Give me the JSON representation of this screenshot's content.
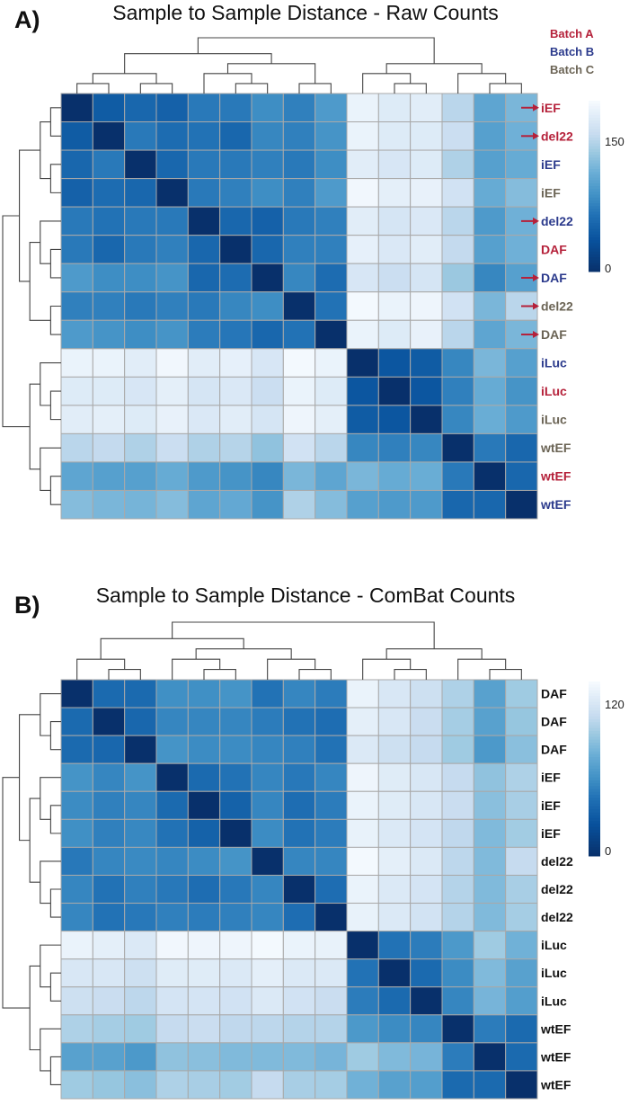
{
  "chart_data": [
    {
      "type": "heatmap",
      "panel_label": "A)",
      "title": "Sample to Sample Distance - Raw Counts",
      "colorbar": {
        "ticks": [
          0,
          150
        ],
        "range": [
          0,
          195
        ],
        "low_color": "#08306b",
        "high_color": "#f7fbff"
      },
      "batch_legend": [
        {
          "label": "Batch A",
          "color": "#b5213a"
        },
        {
          "label": "Batch B",
          "color": "#2b3a8c"
        },
        {
          "label": "Batch C",
          "color": "#6b6455"
        }
      ],
      "row_labels": [
        "iEF",
        "del22",
        "iEF",
        "iEF",
        "del22",
        "DAF",
        "DAF",
        "del22",
        "DAF",
        "iLuc",
        "iLuc",
        "iLuc",
        "wtEF",
        "wtEF",
        "wtEF"
      ],
      "row_batches": [
        "A",
        "A",
        "B",
        "C",
        "B",
        "A",
        "B",
        "C",
        "C",
        "B",
        "A",
        "C",
        "C",
        "A",
        "B"
      ],
      "arrow_rows": [
        0,
        1,
        4,
        6,
        7,
        8
      ],
      "row_clusters": [
        [
          [
            [
              0,
              1
            ],
            [
              2,
              3
            ]
          ],
          [
            [
              4,
              [
                5,
                6
              ]
            ],
            [
              7,
              8
            ]
          ]
        ],
        [
          [
            9,
            [
              10,
              11
            ]
          ],
          [
            12,
            [
              13,
              14
            ]
          ]
        ]
      ],
      "column_clusters": [
        [
          [
            [
              0,
              1
            ],
            [
              2,
              3
            ]
          ],
          [
            [
              4,
              [
                5,
                6
              ]
            ],
            [
              7,
              8
            ]
          ]
        ],
        [
          [
            9,
            [
              10,
              11
            ]
          ],
          [
            12,
            [
              13,
              14
            ]
          ]
        ]
      ],
      "values": [
        [
          0,
          45,
          55,
          50,
          70,
          70,
          85,
          75,
          95,
          185,
          175,
          178,
          150,
          105,
          120
        ],
        [
          45,
          0,
          70,
          60,
          65,
          55,
          80,
          75,
          90,
          185,
          175,
          175,
          160,
          100,
          115
        ],
        [
          55,
          70,
          0,
          55,
          70,
          70,
          75,
          70,
          85,
          178,
          170,
          175,
          145,
          100,
          110
        ],
        [
          50,
          60,
          55,
          0,
          70,
          75,
          85,
          75,
          95,
          190,
          180,
          183,
          165,
          110,
          125
        ],
        [
          70,
          65,
          70,
          70,
          0,
          55,
          50,
          70,
          75,
          178,
          168,
          172,
          150,
          95,
          115
        ],
        [
          70,
          55,
          70,
          75,
          55,
          0,
          55,
          75,
          75,
          182,
          172,
          178,
          155,
          100,
          115
        ],
        [
          95,
          85,
          85,
          90,
          55,
          60,
          0,
          80,
          60,
          170,
          160,
          168,
          135,
          80,
          100
        ],
        [
          75,
          75,
          70,
          75,
          70,
          80,
          85,
          0,
          65,
          192,
          185,
          188,
          165,
          120,
          150
        ],
        [
          95,
          90,
          85,
          90,
          72,
          68,
          55,
          65,
          0,
          185,
          175,
          183,
          150,
          105,
          120
        ],
        [
          185,
          185,
          178,
          190,
          178,
          182,
          170,
          192,
          185,
          0,
          40,
          45,
          80,
          120,
          100
        ],
        [
          175,
          175,
          170,
          180,
          168,
          172,
          160,
          185,
          175,
          40,
          0,
          40,
          75,
          110,
          90
        ],
        [
          178,
          180,
          175,
          183,
          172,
          178,
          168,
          188,
          180,
          45,
          40,
          0,
          80,
          112,
          95
        ],
        [
          150,
          155,
          145,
          160,
          145,
          148,
          130,
          165,
          150,
          80,
          75,
          80,
          0,
          70,
          55
        ],
        [
          105,
          100,
          100,
          110,
          95,
          90,
          80,
          120,
          105,
          120,
          110,
          112,
          70,
          0,
          55
        ],
        [
          125,
          120,
          118,
          125,
          105,
          108,
          90,
          145,
          125,
          100,
          95,
          95,
          55,
          55,
          0
        ]
      ]
    },
    {
      "type": "heatmap",
      "panel_label": "B)",
      "title": "Sample to Sample Distance - ComBat Counts",
      "colorbar": {
        "ticks": [
          0,
          120
        ],
        "range": [
          0,
          135
        ],
        "low_color": "#08306b",
        "high_color": "#f7fbff"
      },
      "row_labels": [
        "DAF",
        "DAF",
        "DAF",
        "iEF",
        "iEF",
        "iEF",
        "del22",
        "del22",
        "del22",
        "iLuc",
        "iLuc",
        "iLuc",
        "wtEF",
        "wtEF",
        "wtEF"
      ],
      "row_label_color": "#111111",
      "row_clusters": [
        [
          [
            0,
            [
              1,
              2
            ]
          ],
          [
            [
              3,
              [
                4,
                5
              ]
            ],
            [
              6,
              [
                7,
                8
              ]
            ]
          ]
        ],
        [
          [
            9,
            [
              10,
              11
            ]
          ],
          [
            12,
            [
              13,
              14
            ]
          ]
        ]
      ],
      "column_clusters": [
        [
          [
            0,
            [
              1,
              2
            ]
          ],
          [
            [
              3,
              [
                4,
                5
              ]
            ],
            [
              6,
              [
                7,
                8
              ]
            ]
          ]
        ],
        [
          [
            9,
            [
              10,
              11
            ]
          ],
          [
            12,
            [
              13,
              14
            ]
          ]
        ]
      ],
      "values": [
        [
          0,
          40,
          40,
          60,
          60,
          62,
          45,
          55,
          50,
          128,
          118,
          112,
          100,
          70,
          95
        ],
        [
          40,
          0,
          38,
          55,
          55,
          55,
          50,
          45,
          42,
          125,
          118,
          110,
          97,
          70,
          92
        ],
        [
          40,
          38,
          0,
          62,
          58,
          58,
          55,
          52,
          45,
          120,
          112,
          108,
          95,
          65,
          88
        ],
        [
          62,
          55,
          62,
          0,
          40,
          45,
          55,
          48,
          55,
          130,
          122,
          118,
          108,
          90,
          100
        ],
        [
          58,
          52,
          55,
          40,
          0,
          35,
          55,
          42,
          50,
          128,
          122,
          118,
          110,
          88,
          98
        ],
        [
          60,
          52,
          56,
          45,
          35,
          0,
          58,
          45,
          50,
          127,
          120,
          116,
          106,
          85,
          96
        ],
        [
          48,
          55,
          57,
          55,
          58,
          62,
          0,
          55,
          55,
          133,
          125,
          120,
          105,
          85,
          108
        ],
        [
          55,
          45,
          52,
          48,
          42,
          48,
          55,
          0,
          42,
          128,
          120,
          116,
          102,
          85,
          98
        ],
        [
          55,
          45,
          48,
          52,
          50,
          52,
          55,
          42,
          0,
          127,
          120,
          115,
          102,
          85,
          97
        ],
        [
          128,
          125,
          120,
          132,
          130,
          130,
          133,
          128,
          127,
          0,
          45,
          50,
          65,
          95,
          80
        ],
        [
          118,
          118,
          112,
          122,
          122,
          120,
          125,
          120,
          120,
          45,
          0,
          40,
          58,
          85,
          70
        ],
        [
          112,
          110,
          105,
          116,
          116,
          114,
          120,
          114,
          110,
          50,
          40,
          0,
          55,
          82,
          68
        ],
        [
          100,
          97,
          95,
          108,
          110,
          106,
          105,
          102,
          102,
          65,
          58,
          55,
          0,
          50,
          40
        ],
        [
          70,
          70,
          65,
          90,
          88,
          85,
          85,
          85,
          82,
          95,
          85,
          82,
          50,
          0,
          40
        ],
        [
          95,
          92,
          88,
          100,
          98,
          96,
          108,
          98,
          97,
          80,
          70,
          68,
          40,
          40,
          0
        ]
      ]
    }
  ]
}
